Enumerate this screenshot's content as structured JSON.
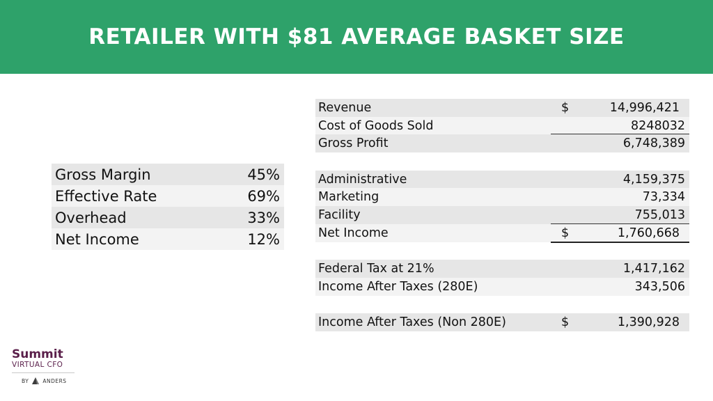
{
  "header": {
    "title": "RETAILER WITH $81 AVERAGE BASKET SIZE"
  },
  "colors": {
    "header_bg": "#2ea26a",
    "logo_purple": "#5a1f4a"
  },
  "metrics": [
    {
      "label": "Gross Margin",
      "value": "45%"
    },
    {
      "label": "Effective Rate",
      "value": "69%"
    },
    {
      "label": "Overhead",
      "value": "33%"
    },
    {
      "label": "Net Income",
      "value": "12%"
    }
  ],
  "pl": {
    "revenue": {
      "label": "Revenue",
      "currency": "$",
      "value": "14,996,421"
    },
    "cogs": {
      "label": "Cost of Goods Sold",
      "value": "8248032"
    },
    "gross_profit": {
      "label": "Gross Profit",
      "value": "6,748,389"
    },
    "administrative": {
      "label": "Administrative",
      "value": "4,159,375"
    },
    "marketing": {
      "label": "Marketing",
      "value": "73,334"
    },
    "facility": {
      "label": "Facility",
      "value": "755,013"
    },
    "net_income": {
      "label": "Net Income",
      "currency": "$",
      "value": "1,760,668"
    },
    "federal_tax": {
      "label": "Federal Tax at 21%",
      "value": "1,417,162"
    },
    "income_280e": {
      "label": "Income After Taxes (280E)",
      "value": "343,506"
    },
    "income_non_280e": {
      "label": "Income After Taxes (Non 280E)",
      "currency": "$",
      "value": "1,390,928"
    }
  },
  "logo": {
    "name": "Summit",
    "subtitle": "VIRTUAL CFO",
    "by": "BY",
    "partner": "ANDERS",
    "icon": "anders-mark-icon"
  }
}
